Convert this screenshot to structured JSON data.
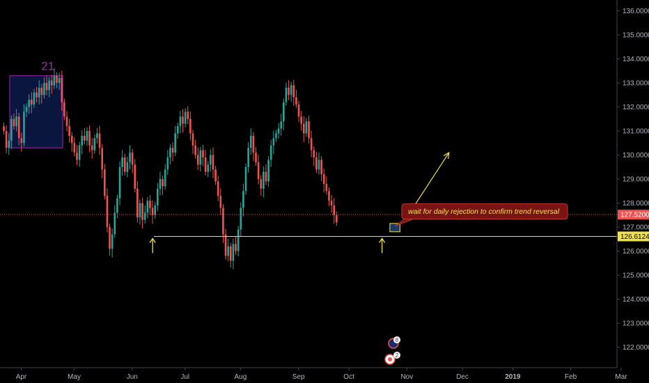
{
  "chart_data": {
    "type": "candlestick",
    "y_ticks": [
      "122.0000",
      "123.0000",
      "124.0000",
      "125.0000",
      "126.0000",
      "127.0000",
      "128.0000",
      "129.0000",
      "130.0000",
      "131.0000",
      "132.0000",
      "133.0000",
      "134.0000",
      "135.0000",
      "136.0000"
    ],
    "ylim": [
      121.15,
      136.45
    ],
    "x_ticks": [
      {
        "label": "Apr",
        "index": 4,
        "bold": false
      },
      {
        "label": "May",
        "index": 25,
        "bold": false
      },
      {
        "label": "Jun",
        "index": 48,
        "bold": false
      },
      {
        "label": "Jul",
        "index": 69,
        "bold": false
      },
      {
        "label": "Aug",
        "index": 91,
        "bold": false
      },
      {
        "label": "Sep",
        "index": 114,
        "bold": false
      },
      {
        "label": "Oct",
        "index": 134,
        "bold": false
      },
      {
        "label": "Nov",
        "index": 157,
        "bold": false
      },
      {
        "label": "Dec",
        "index": 179,
        "bold": false
      },
      {
        "label": "2019",
        "index": 199,
        "bold": true
      },
      {
        "label": "Feb",
        "index": 222,
        "bold": false
      },
      {
        "label": "Mar",
        "index": 242,
        "bold": false
      }
    ],
    "last_price": "127.5200",
    "level_price": "126.6124",
    "level_value": 126.6124,
    "last_value": 127.52,
    "support_start_index": 60,
    "note": "wait for daily rejection to confirm trend reversal",
    "count_label": "21",
    "box": {
      "from_index": 0,
      "to_index": 21,
      "low": 130.3,
      "high": 133.3
    },
    "small_box": {
      "from_index": 153,
      "to_index": 157,
      "low": 126.62,
      "high": 126.98
    },
    "arrow_up_indices": [
      60,
      151
    ],
    "projection": {
      "from_index": 159,
      "from_value": 127.2,
      "to_index": 177,
      "to_value": 130.1
    },
    "events": [
      {
        "label": "8"
      },
      {
        "label": "2"
      }
    ],
    "colors": {
      "up": "#26a69a",
      "down": "#ef5350",
      "annotation": "#f0e14a",
      "box": "#9c27b0",
      "box_fill": "#0d1a4a",
      "last_price_bg": "#ef5350",
      "level_bg": "#f0e14a"
    },
    "closes": [
      131.0,
      130.3,
      130.6,
      131.5,
      131.2,
      131.6,
      130.7,
      130.5,
      131.8,
      132.0,
      132.3,
      132.1,
      132.6,
      132.4,
      132.8,
      132.5,
      133.0,
      132.7,
      133.1,
      132.9,
      133.3,
      133.0,
      133.2,
      132.2,
      131.6,
      131.2,
      130.8,
      130.5,
      130.1,
      129.8,
      130.4,
      130.8,
      130.6,
      131.0,
      130.4,
      130.2,
      130.7,
      130.9,
      130.3,
      129.4,
      128.3,
      127.0,
      126.1,
      126.7,
      127.6,
      128.2,
      129.5,
      129.9,
      129.3,
      129.7,
      130.1,
      129.6,
      128.6,
      127.4,
      128.0,
      127.3,
      127.6,
      128.1,
      127.8,
      127.5,
      127.9,
      128.6,
      129.0,
      128.7,
      129.4,
      129.9,
      130.3,
      130.1,
      130.9,
      131.2,
      131.6,
      131.3,
      131.8,
      131.5,
      130.9,
      130.4,
      130.0,
      129.6,
      130.2,
      129.9,
      129.3,
      129.6,
      130.0,
      129.4,
      128.9,
      128.3,
      127.8,
      126.7,
      125.8,
      126.2,
      125.6,
      126.3,
      126.0,
      126.9,
      127.8,
      128.5,
      129.5,
      130.3,
      130.8,
      130.1,
      129.7,
      129.0,
      128.6,
      129.3,
      128.9,
      129.8,
      130.4,
      130.7,
      130.9,
      131.1,
      131.4,
      132.2,
      132.8,
      132.5,
      132.9,
      132.4,
      132.1,
      131.6,
      131.3,
      130.9,
      131.4,
      130.7,
      130.2,
      129.9,
      129.4,
      129.8,
      129.2,
      128.8,
      128.5,
      128.1,
      127.9,
      127.5,
      127.2
    ]
  }
}
